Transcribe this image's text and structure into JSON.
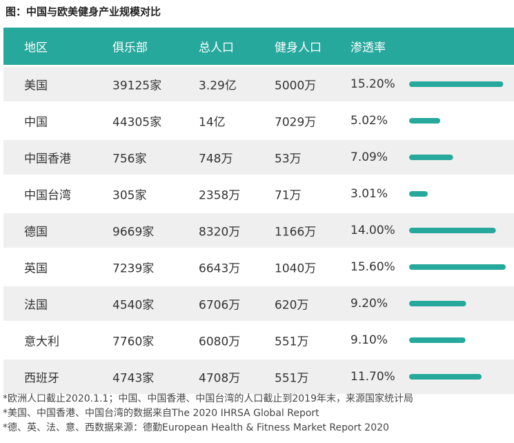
{
  "title": "图：中国与欧美健身产业规模对比",
  "chart_data": {
    "type": "table",
    "columns": [
      "地区",
      "俱乐部",
      "总人口",
      "健身人口",
      "渗透率"
    ],
    "rows": [
      {
        "region": "美国",
        "clubs": "39125家",
        "population": "3.29亿",
        "fitness": "5000万",
        "penetration": "15.20%",
        "value": 15.2
      },
      {
        "region": "中国",
        "clubs": "44305家",
        "population": "14亿",
        "fitness": "7029万",
        "penetration": "5.02%",
        "value": 5.02
      },
      {
        "region": "中国香港",
        "clubs": "756家",
        "population": "748万",
        "fitness": "53万",
        "penetration": "7.09%",
        "value": 7.09
      },
      {
        "region": "中国台湾",
        "clubs": "305家",
        "population": "2358万",
        "fitness": "71万",
        "penetration": "3.01%",
        "value": 3.01
      },
      {
        "region": "德国",
        "clubs": "9669家",
        "population": "8320万",
        "fitness": "1166万",
        "penetration": "14.00%",
        "value": 14.0
      },
      {
        "region": "英国",
        "clubs": "7239家",
        "population": "6643万",
        "fitness": "1040万",
        "penetration": "15.60%",
        "value": 15.6
      },
      {
        "region": "法国",
        "clubs": "4540家",
        "population": "6706万",
        "fitness": "620万",
        "penetration": "9.20%",
        "value": 9.2
      },
      {
        "region": "意大利",
        "clubs": "7760家",
        "population": "6080万",
        "fitness": "551万",
        "penetration": "9.10%",
        "value": 9.1
      },
      {
        "region": "西班牙",
        "clubs": "4743家",
        "population": "4708万",
        "fitness": "551万",
        "penetration": "11.70%",
        "value": 11.7
      }
    ],
    "bar_color": "#27a89c",
    "header_color": "#27a89c",
    "bar_max": 15.6
  },
  "notes": [
    "*欧洲人口截止2020.1.1；中国、中国香港、中国台湾的人口截止到2019年末，来源国家统计局",
    "*美国、中国香港、中国台湾的数据来自The 2020 IHRSA Global Report",
    "*德、英、法、意、西数据来源：德勤European Health & Fitness Market Report 2020"
  ]
}
